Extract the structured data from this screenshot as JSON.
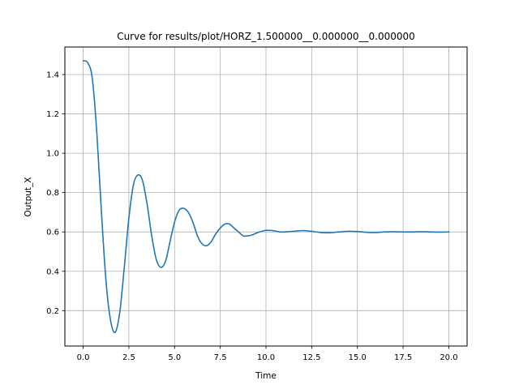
{
  "chart_data": {
    "type": "line",
    "title": "Curve for results/plot/HORZ_1.500000__0.000000__0.000000",
    "xlabel": "Time",
    "ylabel": "Output_X",
    "xlim": [
      -1.0,
      21.0
    ],
    "ylim": [
      0.02,
      1.54
    ],
    "xticks": [
      0.0,
      2.5,
      5.0,
      7.5,
      10.0,
      12.5,
      15.0,
      17.5,
      20.0
    ],
    "xtick_labels": [
      "0.0",
      "2.5",
      "5.0",
      "7.5",
      "10.0",
      "12.5",
      "15.0",
      "17.5",
      "20.0"
    ],
    "yticks": [
      0.2,
      0.4,
      0.6,
      0.8,
      1.0,
      1.2,
      1.4
    ],
    "ytick_labels": [
      "0.2",
      "0.4",
      "0.6",
      "0.8",
      "1.0",
      "1.2",
      "1.4"
    ],
    "grid": true,
    "line_color": "#1f77b4",
    "series": [
      {
        "x": [
          0.0,
          0.25,
          0.5,
          0.75,
          1.0,
          1.25,
          1.5,
          1.75,
          2.0,
          2.25,
          2.5,
          2.75,
          3.0,
          3.25,
          3.5,
          3.75,
          4.0,
          4.25,
          4.5,
          4.75,
          5.0,
          5.25,
          5.5,
          5.75,
          6.0,
          6.25,
          6.5,
          6.75,
          7.0,
          7.25,
          7.5,
          7.75,
          8.0,
          8.25,
          8.5,
          8.75,
          9.0,
          9.25,
          9.5,
          9.75,
          10.0,
          10.25,
          10.5,
          10.75,
          11.0,
          11.5,
          12.0,
          12.5,
          13.0,
          13.5,
          14.0,
          14.5,
          15.0,
          15.5,
          16.0,
          16.5,
          17.0,
          17.5,
          18.0,
          18.5,
          19.0,
          19.5,
          20.0
        ],
        "values": [
          1.47,
          1.46,
          1.38,
          1.1,
          0.7,
          0.35,
          0.15,
          0.09,
          0.19,
          0.42,
          0.67,
          0.84,
          0.89,
          0.86,
          0.74,
          0.58,
          0.46,
          0.42,
          0.45,
          0.55,
          0.65,
          0.71,
          0.72,
          0.7,
          0.65,
          0.58,
          0.54,
          0.53,
          0.55,
          0.59,
          0.62,
          0.64,
          0.64,
          0.62,
          0.6,
          0.58,
          0.58,
          0.585,
          0.595,
          0.603,
          0.608,
          0.608,
          0.605,
          0.6,
          0.6,
          0.603,
          0.607,
          0.603,
          0.597,
          0.596,
          0.6,
          0.603,
          0.602,
          0.598,
          0.597,
          0.6,
          0.601,
          0.6,
          0.6,
          0.601,
          0.6,
          0.599,
          0.6
        ]
      }
    ]
  }
}
